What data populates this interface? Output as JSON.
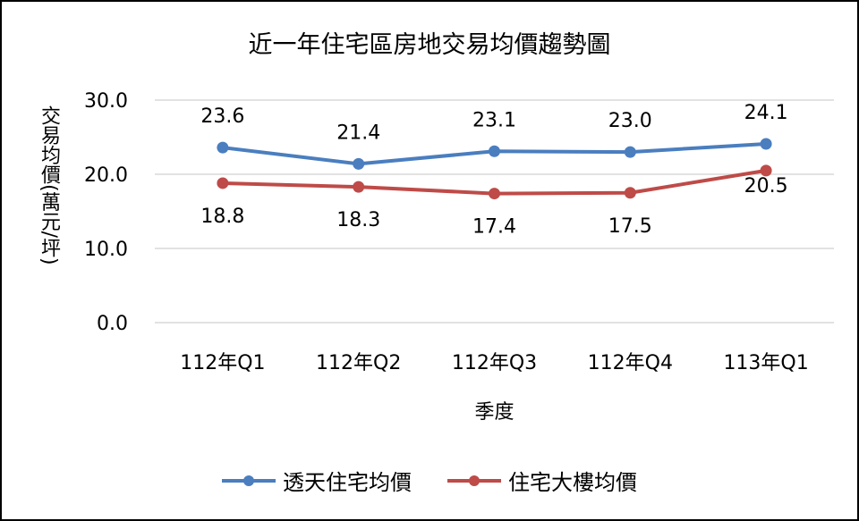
{
  "chart_data": {
    "type": "line",
    "title": "近一年住宅區房地交易均價趨勢圖",
    "xlabel": "季度",
    "ylabel": "交易均價(萬元/坪)",
    "categories": [
      "112年Q1",
      "112年Q2",
      "112年Q3",
      "112年Q4",
      "113年Q1"
    ],
    "ylim": [
      0,
      30
    ],
    "yticks": [
      "0.0",
      "10.0",
      "20.0",
      "30.0"
    ],
    "grid": true,
    "legend": "bottom",
    "series": [
      {
        "name": "透天住宅均價",
        "color": "#4a7ebf",
        "values": [
          23.6,
          21.4,
          23.1,
          23.0,
          24.1
        ],
        "labels": [
          "23.6",
          "21.4",
          "23.1",
          "23.0",
          "24.1"
        ]
      },
      {
        "name": "住宅大樓均價",
        "color": "#be4b48",
        "values": [
          18.8,
          18.3,
          17.4,
          17.5,
          20.5
        ],
        "labels": [
          "18.8",
          "18.3",
          "17.4",
          "17.5",
          "20.5"
        ]
      }
    ]
  }
}
